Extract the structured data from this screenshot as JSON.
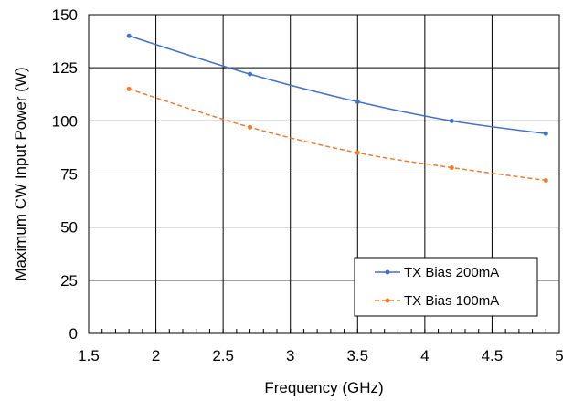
{
  "chart_data": {
    "type": "line",
    "title": "",
    "xlabel": "Frequency (GHz)",
    "ylabel": "Maximum CW Input Power (W)",
    "xlim": [
      1.5,
      5
    ],
    "ylim": [
      0,
      150
    ],
    "x_ticks": [
      1.5,
      2,
      2.5,
      3,
      3.5,
      4,
      4.5,
      5
    ],
    "x_tick_labels": [
      "1.5",
      "2",
      "2.5",
      "3",
      "3.5",
      "4",
      "4.5",
      "5"
    ],
    "y_ticks": [
      0,
      25,
      50,
      75,
      100,
      125,
      150
    ],
    "y_tick_labels": [
      "0",
      "25",
      "50",
      "75",
      "100",
      "125",
      "150"
    ],
    "x_minor_tick_step": 0.1,
    "grid": true,
    "legend_position": "bottom-right",
    "series": [
      {
        "name": "TX Bias 200mA",
        "color": "#4472C4",
        "line_style": "solid",
        "marker": "dot",
        "x": [
          1.8,
          2.7,
          3.5,
          4.2,
          4.9
        ],
        "y": [
          140,
          122,
          109,
          100,
          94
        ]
      },
      {
        "name": "TX Bias 100mA",
        "color": "#ED7D31",
        "line_style": "dashed",
        "marker": "dot",
        "x": [
          1.8,
          2.7,
          3.5,
          4.2,
          4.9
        ],
        "y": [
          115,
          97,
          85,
          78,
          72
        ]
      }
    ]
  }
}
